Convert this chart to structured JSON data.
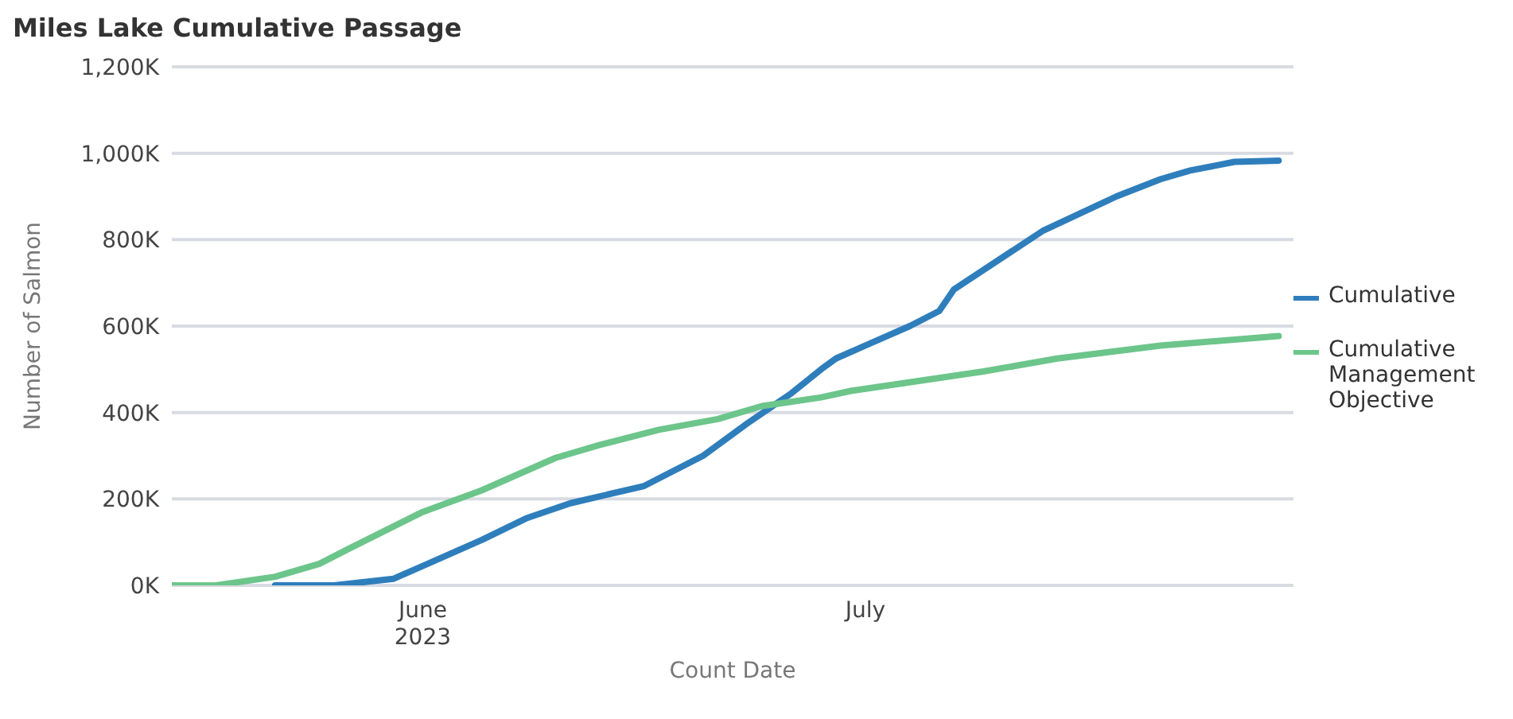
{
  "chart_data": {
    "type": "line",
    "title": "Miles Lake Cumulative Passage",
    "xlabel": "Count Date",
    "ylabel": "Number of Salmon",
    "xlim": [
      "2023-05-15",
      "2023-07-30"
    ],
    "xticks": [
      {
        "value": "2023-06-01",
        "label": "June\n2023"
      },
      {
        "value": "2023-07-01",
        "label": "July"
      }
    ],
    "ylim": [
      0,
      1200000
    ],
    "yticks": [
      {
        "value": 0,
        "label": "0K"
      },
      {
        "value": 200000,
        "label": "200K"
      },
      {
        "value": 400000,
        "label": "400K"
      },
      {
        "value": 600000,
        "label": "600K"
      },
      {
        "value": 800000,
        "label": "800K"
      },
      {
        "value": 1000000,
        "label": "1,000K"
      },
      {
        "value": 1200000,
        "label": "1,200K"
      }
    ],
    "grid": "y",
    "legend": "right",
    "series": [
      {
        "name": "Cumulative",
        "color": "#2f7ebc",
        "x": [
          "2023-05-22",
          "2023-05-26",
          "2023-05-30",
          "2023-06-01",
          "2023-06-05",
          "2023-06-08",
          "2023-06-11",
          "2023-06-16",
          "2023-06-20",
          "2023-06-23",
          "2023-06-26",
          "2023-06-28",
          "2023-06-29",
          "2023-07-01",
          "2023-07-04",
          "2023-07-06",
          "2023-07-07",
          "2023-07-09",
          "2023-07-13",
          "2023-07-18",
          "2023-07-21",
          "2023-07-23",
          "2023-07-26",
          "2023-07-29"
        ],
        "values": [
          0,
          0,
          15000,
          45000,
          105000,
          155000,
          190000,
          230000,
          300000,
          375000,
          445000,
          500000,
          525000,
          555000,
          600000,
          635000,
          685000,
          730000,
          820000,
          900000,
          940000,
          960000,
          980000,
          983000
        ]
      },
      {
        "name": "Cumulative Management Objective",
        "color": "#6cc58a",
        "x": [
          "2023-05-15",
          "2023-05-18",
          "2023-05-22",
          "2023-05-25",
          "2023-05-27",
          "2023-06-01",
          "2023-06-05",
          "2023-06-08",
          "2023-06-10",
          "2023-06-13",
          "2023-06-17",
          "2023-06-21",
          "2023-06-24",
          "2023-06-28",
          "2023-06-30",
          "2023-07-09",
          "2023-07-14",
          "2023-07-21",
          "2023-07-29"
        ],
        "values": [
          0,
          0,
          20000,
          50000,
          85000,
          170000,
          220000,
          265000,
          295000,
          325000,
          360000,
          385000,
          415000,
          435000,
          450000,
          495000,
          525000,
          555000,
          577000
        ]
      }
    ]
  }
}
